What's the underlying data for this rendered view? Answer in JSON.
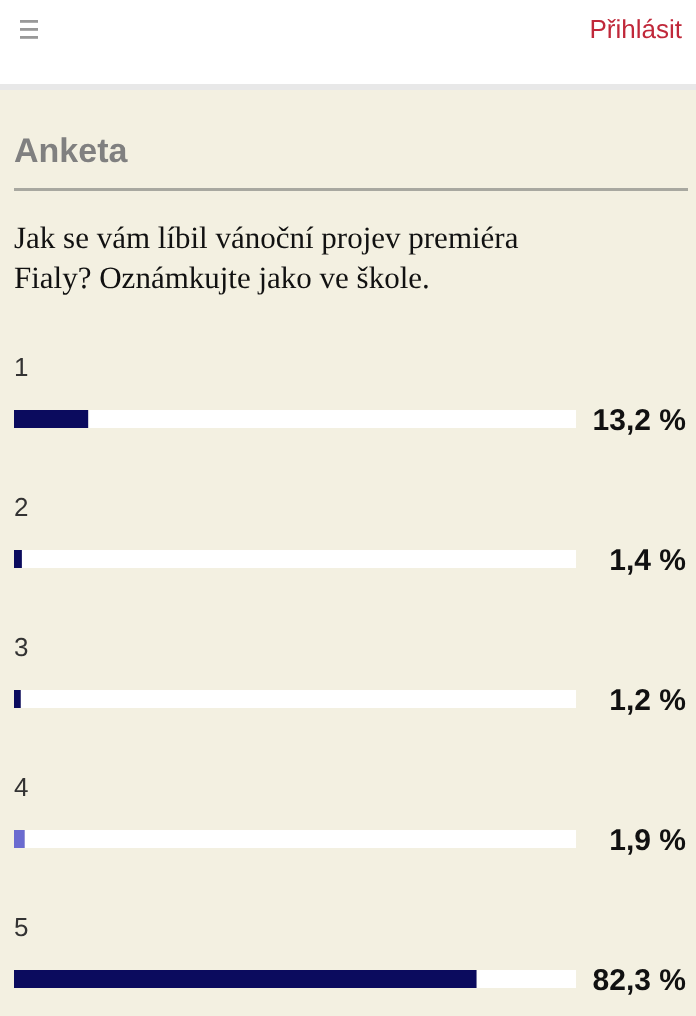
{
  "chart_data": {
    "type": "bar",
    "orientation": "horizontal",
    "title": "Anketa",
    "subtitle": "Jak se vám líbil vánoční projev premiéra Fialy? Oznámkujte jako ve škole.",
    "annotations": [
      "Přihlásit"
    ],
    "categories": [
      "1",
      "2",
      "3",
      "4",
      "5"
    ],
    "values": [
      13.2,
      1.4,
      1.2,
      1.9,
      82.3
    ],
    "value_labels": [
      "13,2 %",
      "1,4 %",
      "1,2 %",
      "1,9 %",
      "82,3 %"
    ],
    "colors": [
      "#0b0b5e",
      "#0b0b5e",
      "#0b0b5e",
      "#6b6bd0",
      "#0b0b5e"
    ],
    "xlim": [
      0,
      100
    ]
  }
}
